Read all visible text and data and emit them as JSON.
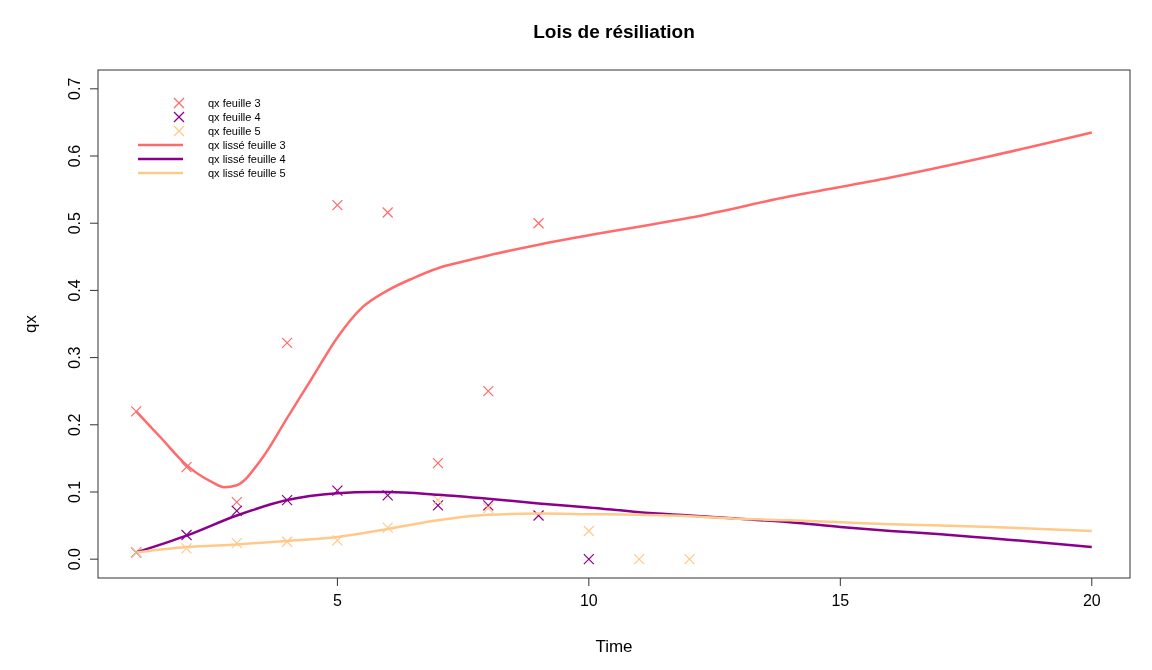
{
  "chart_data": {
    "type": "line",
    "title": "Lois de résiliation",
    "xlabel": "Time",
    "ylabel": "qx",
    "xlim": [
      0.24,
      20.76
    ],
    "ylim": [
      -0.028,
      0.728
    ],
    "xticks": [
      5,
      10,
      15,
      20
    ],
    "yticks": [
      {
        "value": 0,
        "label": "0.0"
      },
      {
        "value": 0.1,
        "label": "0.1"
      },
      {
        "value": 0.2,
        "label": "0.2"
      },
      {
        "value": 0.3,
        "label": "0.3"
      },
      {
        "value": 0.4,
        "label": "0.4"
      },
      {
        "value": 0.5,
        "label": "0.5"
      },
      {
        "value": 0.6,
        "label": "0.6"
      },
      {
        "value": 0.7,
        "label": "0.7"
      }
    ],
    "grid": false,
    "legend": "top left",
    "series": [
      {
        "name": "qx feuille 3",
        "type": "scatter",
        "marker": "cross",
        "color": "#ff6b6b",
        "x": [
          1,
          2,
          3,
          4,
          5,
          6,
          7,
          8,
          9
        ],
        "values": [
          0.22,
          0.137,
          0.085,
          0.322,
          0.527,
          0.516,
          0.143,
          0.25,
          0.5
        ]
      },
      {
        "name": "qx feuille 4",
        "type": "scatter",
        "marker": "cross",
        "color": "#8b008b",
        "x": [
          1,
          2,
          3,
          4,
          5,
          6,
          7,
          8,
          9,
          10
        ],
        "values": [
          0.01,
          0.036,
          0.072,
          0.088,
          0.102,
          0.095,
          0.08,
          0.08,
          0.065,
          0
        ]
      },
      {
        "name": "qx feuille 5",
        "type": "scatter",
        "marker": "cross",
        "color": "#ffc98a",
        "x": [
          1,
          2,
          3,
          4,
          5,
          6,
          7,
          8,
          10,
          11,
          12
        ],
        "values": [
          0.01,
          0.016,
          0.024,
          0.026,
          0.028,
          0.047,
          0.088,
          0.076,
          0.042,
          0,
          0
        ]
      },
      {
        "name": "qx lissé feuille 3",
        "type": "line",
        "marker": "none",
        "line_style": "solid",
        "color": "#ff6b6b",
        "x": [
          1,
          1.5,
          2,
          2.5,
          2.75,
          3,
          3.5,
          4,
          4.5,
          5,
          5.5,
          6,
          6.5,
          7,
          7.5,
          8,
          9,
          10,
          12,
          14,
          16,
          18,
          20
        ],
        "values": [
          0.22,
          0.18,
          0.14,
          0.115,
          0.107,
          0.11,
          0.15,
          0.21,
          0.27,
          0.33,
          0.375,
          0.4,
          0.418,
          0.433,
          0.443,
          0.452,
          0.468,
          0.482,
          0.508,
          0.54,
          0.568,
          0.6,
          0.635
        ]
      },
      {
        "name": "qx lissé feuille 4",
        "type": "line",
        "marker": "none",
        "line_style": "solid",
        "color": "#8b008b",
        "x": [
          1,
          2,
          3,
          4,
          5,
          5.7,
          6,
          7,
          8,
          9,
          10,
          11,
          12,
          13,
          14,
          15,
          16,
          17,
          18,
          19,
          20
        ],
        "values": [
          0.01,
          0.035,
          0.065,
          0.088,
          0.098,
          0.1,
          0.1,
          0.096,
          0.09,
          0.083,
          0.077,
          0.07,
          0.065,
          0.06,
          0.055,
          0.048,
          0.042,
          0.037,
          0.031,
          0.025,
          0.018
        ]
      },
      {
        "name": "qx lissé feuille 5",
        "type": "line",
        "marker": "none",
        "line_style": "solid",
        "color": "#ffc98a",
        "x": [
          1,
          2,
          3,
          4,
          5,
          6,
          7,
          8,
          9,
          10,
          11,
          12,
          13,
          14,
          15,
          16,
          17,
          18,
          19,
          20
        ],
        "values": [
          0.01,
          0.018,
          0.022,
          0.027,
          0.033,
          0.045,
          0.058,
          0.066,
          0.068,
          0.067,
          0.066,
          0.064,
          0.06,
          0.058,
          0.055,
          0.052,
          0.05,
          0.048,
          0.045,
          0.042
        ]
      }
    ]
  }
}
